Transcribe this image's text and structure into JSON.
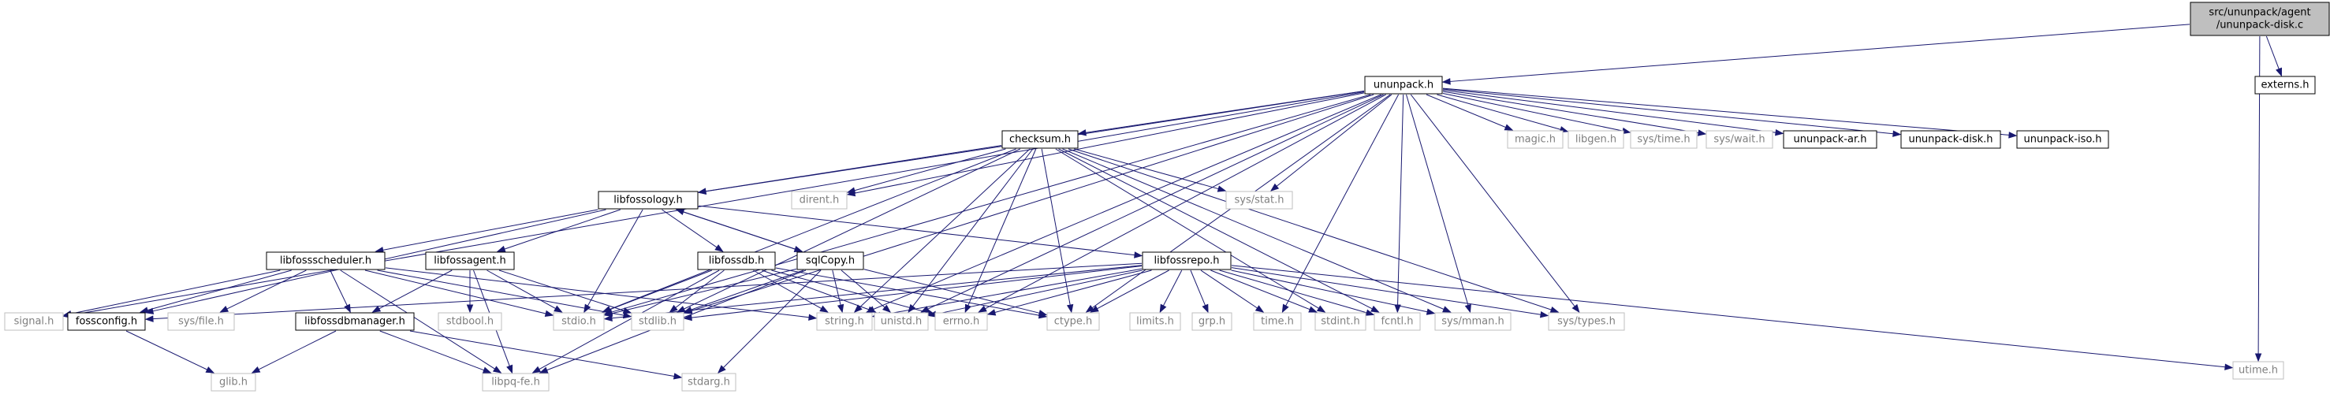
{
  "diagram": {
    "kind": "include-dependency-graph",
    "colors": {
      "edge": "#191970",
      "root_fill": "#bfbfbf",
      "root_stroke": "#000000",
      "doc_fill": "#ffffff",
      "doc_stroke": "#000000",
      "ext_fill": "#ffffff",
      "ext_stroke": "#bfbfbf",
      "doc_text": "#000000",
      "ext_text": "#7f7f7f"
    },
    "nodes": [
      {
        "id": "root",
        "lines": [
          "src/ununpack/agent",
          "/ununpack-disk.c"
        ],
        "kind": "root"
      },
      {
        "id": "ununpack_h",
        "lines": [
          "ununpack.h"
        ],
        "kind": "doc"
      },
      {
        "id": "externs_h",
        "lines": [
          "externs.h"
        ],
        "kind": "doc"
      },
      {
        "id": "utime_h",
        "lines": [
          "utime.h"
        ],
        "kind": "ext"
      },
      {
        "id": "checksum_h",
        "lines": [
          "checksum.h"
        ],
        "kind": "doc"
      },
      {
        "id": "magic_h",
        "lines": [
          "magic.h"
        ],
        "kind": "ext"
      },
      {
        "id": "libgen_h",
        "lines": [
          "libgen.h"
        ],
        "kind": "ext"
      },
      {
        "id": "systime_h",
        "lines": [
          "sys/time.h"
        ],
        "kind": "ext"
      },
      {
        "id": "syswait_h",
        "lines": [
          "sys/wait.h"
        ],
        "kind": "ext"
      },
      {
        "id": "ununpack_ar_h",
        "lines": [
          "ununpack-ar.h"
        ],
        "kind": "doc"
      },
      {
        "id": "ununpack_disk_h",
        "lines": [
          "ununpack-disk.h"
        ],
        "kind": "doc"
      },
      {
        "id": "ununpack_iso_h",
        "lines": [
          "ununpack-iso.h"
        ],
        "kind": "doc"
      },
      {
        "id": "dirent_h",
        "lines": [
          "dirent.h"
        ],
        "kind": "ext"
      },
      {
        "id": "sysstat_h",
        "lines": [
          "sys/stat.h"
        ],
        "kind": "ext"
      },
      {
        "id": "libfossology_h",
        "lines": [
          "libfossology.h"
        ],
        "kind": "doc"
      },
      {
        "id": "libfossscheduler_h",
        "lines": [
          "libfossscheduler.h"
        ],
        "kind": "doc"
      },
      {
        "id": "libfossagent_h",
        "lines": [
          "libfossagent.h"
        ],
        "kind": "doc"
      },
      {
        "id": "libfossdb_h",
        "lines": [
          "libfossdb.h"
        ],
        "kind": "doc"
      },
      {
        "id": "sqlcopy_h",
        "lines": [
          "sqlCopy.h"
        ],
        "kind": "doc"
      },
      {
        "id": "libfossrepo_h",
        "lines": [
          "libfossrepo.h"
        ],
        "kind": "doc"
      },
      {
        "id": "signal_h",
        "lines": [
          "signal.h"
        ],
        "kind": "ext"
      },
      {
        "id": "fossconfig_h",
        "lines": [
          "fossconfig.h"
        ],
        "kind": "doc"
      },
      {
        "id": "sysfile_h",
        "lines": [
          "sys/file.h"
        ],
        "kind": "ext"
      },
      {
        "id": "libfossdbmanager_h",
        "lines": [
          "libfossdbmanager.h"
        ],
        "kind": "doc"
      },
      {
        "id": "stdbool_h",
        "lines": [
          "stdbool.h"
        ],
        "kind": "ext"
      },
      {
        "id": "stdio_h",
        "lines": [
          "stdio.h"
        ],
        "kind": "ext"
      },
      {
        "id": "stdlib_h",
        "lines": [
          "stdlib.h"
        ],
        "kind": "ext"
      },
      {
        "id": "string_h",
        "lines": [
          "string.h"
        ],
        "kind": "ext"
      },
      {
        "id": "unistd_h",
        "lines": [
          "unistd.h"
        ],
        "kind": "ext"
      },
      {
        "id": "errno_h",
        "lines": [
          "errno.h"
        ],
        "kind": "ext"
      },
      {
        "id": "ctype_h",
        "lines": [
          "ctype.h"
        ],
        "kind": "ext"
      },
      {
        "id": "limits_h",
        "lines": [
          "limits.h"
        ],
        "kind": "ext"
      },
      {
        "id": "grp_h",
        "lines": [
          "grp.h"
        ],
        "kind": "ext"
      },
      {
        "id": "time_h",
        "lines": [
          "time.h"
        ],
        "kind": "ext"
      },
      {
        "id": "stdint_h",
        "lines": [
          "stdint.h"
        ],
        "kind": "ext"
      },
      {
        "id": "fcntl_h",
        "lines": [
          "fcntl.h"
        ],
        "kind": "ext"
      },
      {
        "id": "sysmman_h",
        "lines": [
          "sys/mman.h"
        ],
        "kind": "ext"
      },
      {
        "id": "systypes_h",
        "lines": [
          "sys/types.h"
        ],
        "kind": "ext"
      },
      {
        "id": "glib_h",
        "lines": [
          "glib.h"
        ],
        "kind": "ext"
      },
      {
        "id": "libpqfe_h",
        "lines": [
          "libpq-fe.h"
        ],
        "kind": "ext"
      },
      {
        "id": "stdarg_h",
        "lines": [
          "stdarg.h"
        ],
        "kind": "ext"
      }
    ],
    "edges": [
      [
        "root",
        "ununpack_h"
      ],
      [
        "root",
        "externs_h"
      ],
      [
        "root",
        "utime_h"
      ],
      [
        "ununpack_h",
        "checksum_h"
      ],
      [
        "ununpack_h",
        "magic_h"
      ],
      [
        "ununpack_h",
        "libgen_h"
      ],
      [
        "ununpack_h",
        "systime_h"
      ],
      [
        "ununpack_h",
        "syswait_h"
      ],
      [
        "ununpack_h",
        "ununpack_ar_h"
      ],
      [
        "ununpack_h",
        "ununpack_disk_h"
      ],
      [
        "ununpack_h",
        "ununpack_iso_h"
      ],
      [
        "ununpack_h",
        "dirent_h"
      ],
      [
        "ununpack_h",
        "sysstat_h"
      ],
      [
        "ununpack_h",
        "libfossology_h"
      ],
      [
        "ununpack_h",
        "signal_h"
      ],
      [
        "ununpack_h",
        "stdio_h"
      ],
      [
        "ununpack_h",
        "stdlib_h"
      ],
      [
        "ununpack_h",
        "string_h"
      ],
      [
        "ununpack_h",
        "unistd_h"
      ],
      [
        "ununpack_h",
        "errno_h"
      ],
      [
        "ununpack_h",
        "ctype_h"
      ],
      [
        "ununpack_h",
        "time_h"
      ],
      [
        "ununpack_h",
        "fcntl_h"
      ],
      [
        "ununpack_h",
        "sysmman_h"
      ],
      [
        "ununpack_h",
        "systypes_h"
      ],
      [
        "checksum_h",
        "libfossology_h"
      ],
      [
        "checksum_h",
        "dirent_h"
      ],
      [
        "checksum_h",
        "sysstat_h"
      ],
      [
        "checksum_h",
        "stdio_h"
      ],
      [
        "checksum_h",
        "stdlib_h"
      ],
      [
        "checksum_h",
        "string_h"
      ],
      [
        "checksum_h",
        "unistd_h"
      ],
      [
        "checksum_h",
        "errno_h"
      ],
      [
        "checksum_h",
        "ctype_h"
      ],
      [
        "checksum_h",
        "stdint_h"
      ],
      [
        "checksum_h",
        "fcntl_h"
      ],
      [
        "checksum_h",
        "sysmman_h"
      ],
      [
        "checksum_h",
        "systypes_h"
      ],
      [
        "libfossology_h",
        "libfossscheduler_h"
      ],
      [
        "libfossology_h",
        "libfossagent_h"
      ],
      [
        "libfossology_h",
        "libfossdb_h"
      ],
      [
        "libfossology_h",
        "sqlcopy_h"
      ],
      [
        "libfossology_h",
        "libfossrepo_h"
      ],
      [
        "libfossology_h",
        "fossconfig_h"
      ],
      [
        "libfossology_h",
        "stdio_h"
      ],
      [
        "libfossscheduler_h",
        "signal_h"
      ],
      [
        "libfossscheduler_h",
        "fossconfig_h"
      ],
      [
        "libfossscheduler_h",
        "sysfile_h"
      ],
      [
        "libfossscheduler_h",
        "libfossdbmanager_h"
      ],
      [
        "libfossscheduler_h",
        "stdio_h"
      ],
      [
        "libfossscheduler_h",
        "stdlib_h"
      ],
      [
        "libfossscheduler_h",
        "libpqfe_h"
      ],
      [
        "libfossscheduler_h",
        "string_h"
      ],
      [
        "libfossagent_h",
        "libfossdbmanager_h"
      ],
      [
        "libfossagent_h",
        "stdbool_h"
      ],
      [
        "libfossagent_h",
        "stdio_h"
      ],
      [
        "libfossagent_h",
        "stdlib_h"
      ],
      [
        "libfossagent_h",
        "libpqfe_h"
      ],
      [
        "libfossdb_h",
        "stdio_h"
      ],
      [
        "libfossdb_h",
        "stdlib_h"
      ],
      [
        "libfossdb_h",
        "string_h"
      ],
      [
        "libfossdb_h",
        "unistd_h"
      ],
      [
        "libfossdb_h",
        "errno_h"
      ],
      [
        "libfossdb_h",
        "ctype_h"
      ],
      [
        "libfossdb_h",
        "libpqfe_h"
      ],
      [
        "sqlcopy_h",
        "libfossology_h"
      ],
      [
        "sqlcopy_h",
        "stdio_h"
      ],
      [
        "sqlcopy_h",
        "stdlib_h"
      ],
      [
        "sqlcopy_h",
        "string_h"
      ],
      [
        "sqlcopy_h",
        "unistd_h"
      ],
      [
        "sqlcopy_h",
        "ctype_h"
      ],
      [
        "sqlcopy_h",
        "stdarg_h"
      ],
      [
        "sqlcopy_h",
        "libpqfe_h"
      ],
      [
        "libfossrepo_h",
        "fossconfig_h"
      ],
      [
        "libfossrepo_h",
        "stdio_h"
      ],
      [
        "libfossrepo_h",
        "stdlib_h"
      ],
      [
        "libfossrepo_h",
        "string_h"
      ],
      [
        "libfossrepo_h",
        "unistd_h"
      ],
      [
        "libfossrepo_h",
        "errno_h"
      ],
      [
        "libfossrepo_h",
        "ctype_h"
      ],
      [
        "libfossrepo_h",
        "limits_h"
      ],
      [
        "libfossrepo_h",
        "grp_h"
      ],
      [
        "libfossrepo_h",
        "time_h"
      ],
      [
        "libfossrepo_h",
        "stdint_h"
      ],
      [
        "libfossrepo_h",
        "fcntl_h"
      ],
      [
        "libfossrepo_h",
        "sysmman_h"
      ],
      [
        "libfossrepo_h",
        "systypes_h"
      ],
      [
        "libfossrepo_h",
        "utime_h"
      ],
      [
        "fossconfig_h",
        "glib_h"
      ],
      [
        "libfossdbmanager_h",
        "glib_h"
      ],
      [
        "libfossdbmanager_h",
        "libpqfe_h"
      ],
      [
        "libfossdbmanager_h",
        "stdarg_h"
      ]
    ]
  }
}
